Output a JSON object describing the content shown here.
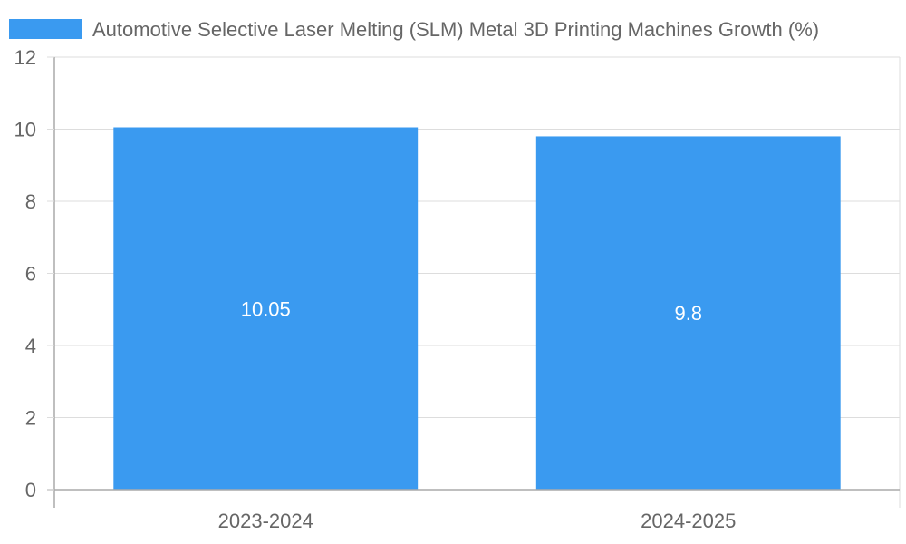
{
  "chart_data": {
    "type": "bar",
    "title": "",
    "xlabel": "",
    "ylabel": "",
    "categories": [
      "2023-2024",
      "2024-2025"
    ],
    "series": [
      {
        "name": "Automotive Selective Laser Melting (SLM) Metal 3D Printing Machines Growth (%)",
        "values": [
          10.05,
          9.8
        ],
        "color": "#3a9af0"
      }
    ],
    "data_labels": [
      "10.05",
      "9.8"
    ],
    "ylim": [
      0,
      12
    ],
    "yticks": [
      0,
      2,
      4,
      6,
      8,
      10,
      12
    ],
    "ytick_labels": [
      "0",
      "2",
      "4",
      "6",
      "8",
      "10",
      "12"
    ],
    "grid": true,
    "legend_position": "top"
  },
  "colors": {
    "grid": "#dddddd",
    "axis": "#aaaaaa",
    "text": "#666666",
    "data_label": "#ffffff"
  }
}
